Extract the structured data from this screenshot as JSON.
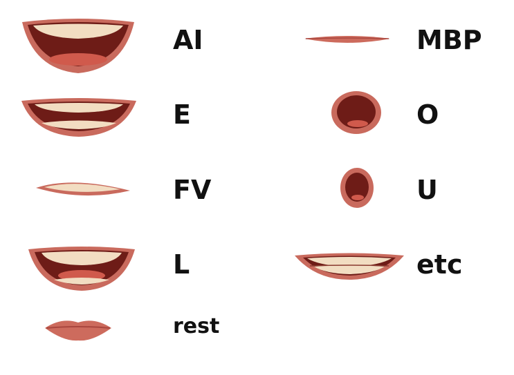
{
  "title": "",
  "colors": {
    "lip": "#c96a5d",
    "lip_dark": "#a9463e",
    "mouth_interior": "#6e1c17",
    "tongue": "#d05a4c",
    "teeth": "#f2ddc2",
    "label": "#111111"
  },
  "mouth_shapes": [
    {
      "id": "ai",
      "label": "AI",
      "icon": "wide-open-mouth-icon"
    },
    {
      "id": "e",
      "label": "E",
      "icon": "teeth-apart-mouth-icon"
    },
    {
      "id": "fv",
      "label": "FV",
      "icon": "lip-on-teeth-mouth-icon"
    },
    {
      "id": "l",
      "label": "L",
      "icon": "open-smile-mouth-icon"
    },
    {
      "id": "rest",
      "label": "rest",
      "icon": "closed-lips-mouth-icon"
    },
    {
      "id": "mbp",
      "label": "MBP",
      "icon": "pressed-lips-mouth-icon"
    },
    {
      "id": "o",
      "label": "O",
      "icon": "round-open-mouth-icon"
    },
    {
      "id": "u",
      "label": "U",
      "icon": "small-round-mouth-icon"
    },
    {
      "id": "etc",
      "label": "etc",
      "icon": "closed-teeth-smile-mouth-icon"
    }
  ]
}
